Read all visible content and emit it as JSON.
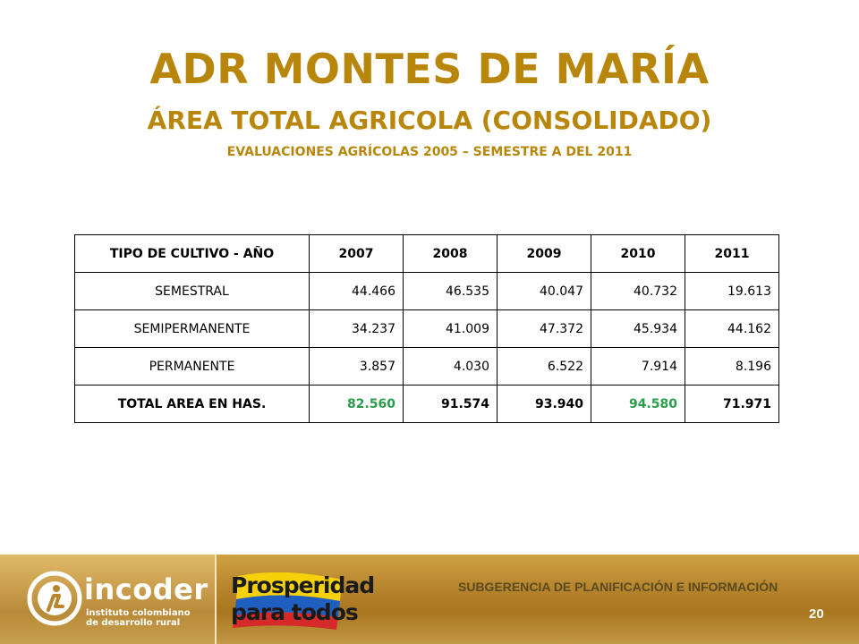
{
  "header": {
    "title": "ADR MONTES DE MARÍA",
    "subtitle": "ÁREA TOTAL AGRICOLA (CONSOLIDADO)",
    "subsubtitle": "EVALUACIONES AGRÍCOLAS 2005 – SEMESTRE A DEL 2011"
  },
  "table": {
    "headers": [
      "TIPO DE CULTIVO  - AÑO",
      "2007",
      "2008",
      "2009",
      "2010",
      "2011"
    ],
    "rows": [
      [
        "SEMESTRAL",
        "44.466",
        "46.535",
        "40.047",
        "40.732",
        "19.613"
      ],
      [
        "SEMIPERMANENTE",
        "34.237",
        "41.009",
        "47.372",
        "45.934",
        "44.162"
      ],
      [
        "PERMANENTE",
        "3.857",
        "4.030",
        "6.522",
        "7.914",
        "8.196"
      ],
      [
        "TOTAL AREA EN HAS.",
        "82.560",
        "91.574",
        "93.940",
        "94.580",
        "71.971"
      ]
    ]
  },
  "colors": {
    "title": "#b8860b",
    "highlight_green": "#2a9d4b",
    "footer_gold": "#b8862e"
  },
  "footer": {
    "logo_word": "incoder",
    "logo_tagline_1": "instituto colombiano",
    "logo_tagline_2": "de desarrollo rural",
    "slogan_1": "Prosperidad",
    "slogan_2": "para todos",
    "department": "SUBGERENCIA DE PLANIFICACIÓN E INFORMACIÓN",
    "page_number": "20"
  }
}
